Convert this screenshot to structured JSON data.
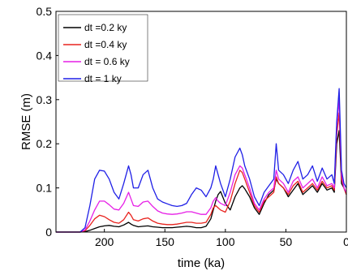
{
  "chart_data": {
    "type": "line",
    "title": "",
    "xlabel": "time (ka)",
    "ylabel": "RMSE (m)",
    "xlim": [
      240,
      0
    ],
    "ylim": [
      0,
      0.5
    ],
    "x_reversed": true,
    "xticks": [
      200,
      150,
      100,
      50,
      0
    ],
    "xtick_labels": [
      "200",
      "150",
      "100",
      "50",
      "0"
    ],
    "yticks": [
      0,
      0.1,
      0.2,
      0.3,
      0.4,
      0.5
    ],
    "ytick_labels": [
      "0",
      "0.1",
      "0.2",
      "0.3",
      "0.4",
      "0.5"
    ],
    "grid": false,
    "legend_position": "top-left",
    "x": [
      240,
      220,
      216,
      212,
      208,
      204,
      200,
      196,
      192,
      188,
      184,
      180,
      178,
      176,
      172,
      168,
      164,
      160,
      156,
      152,
      148,
      144,
      140,
      136,
      132,
      128,
      124,
      120,
      116,
      112,
      110,
      108,
      106,
      104,
      100,
      96,
      92,
      88,
      86,
      84,
      80,
      76,
      72,
      68,
      64,
      60,
      58,
      56,
      52,
      48,
      44,
      40,
      36,
      32,
      28,
      24,
      20,
      16,
      12,
      10,
      8,
      6,
      4,
      2,
      0
    ],
    "series": [
      {
        "name": "dt =0.2 ky",
        "color": "#000000",
        "values": [
          0,
          0,
          0.001,
          0.004,
          0.008,
          0.012,
          0.014,
          0.015,
          0.013,
          0.012,
          0.016,
          0.022,
          0.018,
          0.015,
          0.012,
          0.013,
          0.014,
          0.012,
          0.011,
          0.01,
          0.01,
          0.01,
          0.011,
          0.012,
          0.013,
          0.012,
          0.01,
          0.01,
          0.013,
          0.03,
          0.05,
          0.07,
          0.085,
          0.092,
          0.065,
          0.05,
          0.08,
          0.1,
          0.105,
          0.098,
          0.08,
          0.055,
          0.04,
          0.065,
          0.085,
          0.095,
          0.12,
          0.11,
          0.1,
          0.08,
          0.095,
          0.11,
          0.085,
          0.095,
          0.105,
          0.09,
          0.11,
          0.095,
          0.1,
          0.09,
          0.2,
          0.23,
          0.11,
          0.1,
          0.085
        ]
      },
      {
        "name": "dt =0.4 ky",
        "color": "#e8231e",
        "values": [
          0,
          0,
          0.003,
          0.015,
          0.03,
          0.038,
          0.035,
          0.028,
          0.022,
          0.02,
          0.028,
          0.045,
          0.038,
          0.028,
          0.025,
          0.03,
          0.032,
          0.025,
          0.02,
          0.018,
          0.017,
          0.017,
          0.018,
          0.02,
          0.022,
          0.022,
          0.02,
          0.02,
          0.022,
          0.04,
          0.055,
          0.06,
          0.055,
          0.05,
          0.045,
          0.07,
          0.11,
          0.14,
          0.135,
          0.12,
          0.09,
          0.06,
          0.045,
          0.07,
          0.08,
          0.09,
          0.125,
          0.11,
          0.1,
          0.085,
          0.105,
          0.115,
          0.09,
          0.1,
          0.11,
          0.095,
          0.115,
          0.1,
          0.105,
          0.095,
          0.22,
          0.27,
          0.12,
          0.1,
          0.085
        ]
      },
      {
        "name": "dt = 0.6 ky",
        "color": "#e61fe6",
        "values": [
          0,
          0,
          0.005,
          0.025,
          0.05,
          0.07,
          0.07,
          0.062,
          0.052,
          0.05,
          0.065,
          0.09,
          0.075,
          0.06,
          0.058,
          0.068,
          0.07,
          0.058,
          0.048,
          0.043,
          0.041,
          0.04,
          0.041,
          0.043,
          0.046,
          0.046,
          0.043,
          0.04,
          0.04,
          0.055,
          0.07,
          0.078,
          0.07,
          0.065,
          0.06,
          0.09,
          0.13,
          0.15,
          0.145,
          0.13,
          0.1,
          0.065,
          0.05,
          0.075,
          0.09,
          0.1,
          0.14,
          0.12,
          0.11,
          0.09,
          0.115,
          0.125,
          0.1,
          0.11,
          0.12,
          0.1,
          0.125,
          0.105,
          0.11,
          0.1,
          0.24,
          0.3,
          0.13,
          0.1,
          0.09
        ]
      },
      {
        "name": "dt = 1 ky",
        "color": "#1f1fe6",
        "values": [
          0,
          0,
          0.01,
          0.06,
          0.12,
          0.14,
          0.138,
          0.12,
          0.09,
          0.075,
          0.11,
          0.15,
          0.13,
          0.1,
          0.1,
          0.13,
          0.14,
          0.1,
          0.075,
          0.068,
          0.064,
          0.06,
          0.058,
          0.06,
          0.065,
          0.085,
          0.1,
          0.095,
          0.08,
          0.1,
          0.12,
          0.15,
          0.13,
          0.11,
          0.08,
          0.12,
          0.17,
          0.19,
          0.175,
          0.15,
          0.12,
          0.08,
          0.06,
          0.09,
          0.105,
          0.12,
          0.2,
          0.14,
          0.13,
          0.11,
          0.14,
          0.16,
          0.12,
          0.13,
          0.15,
          0.115,
          0.145,
          0.12,
          0.13,
          0.11,
          0.25,
          0.325,
          0.14,
          0.11,
          0.1
        ]
      }
    ]
  }
}
